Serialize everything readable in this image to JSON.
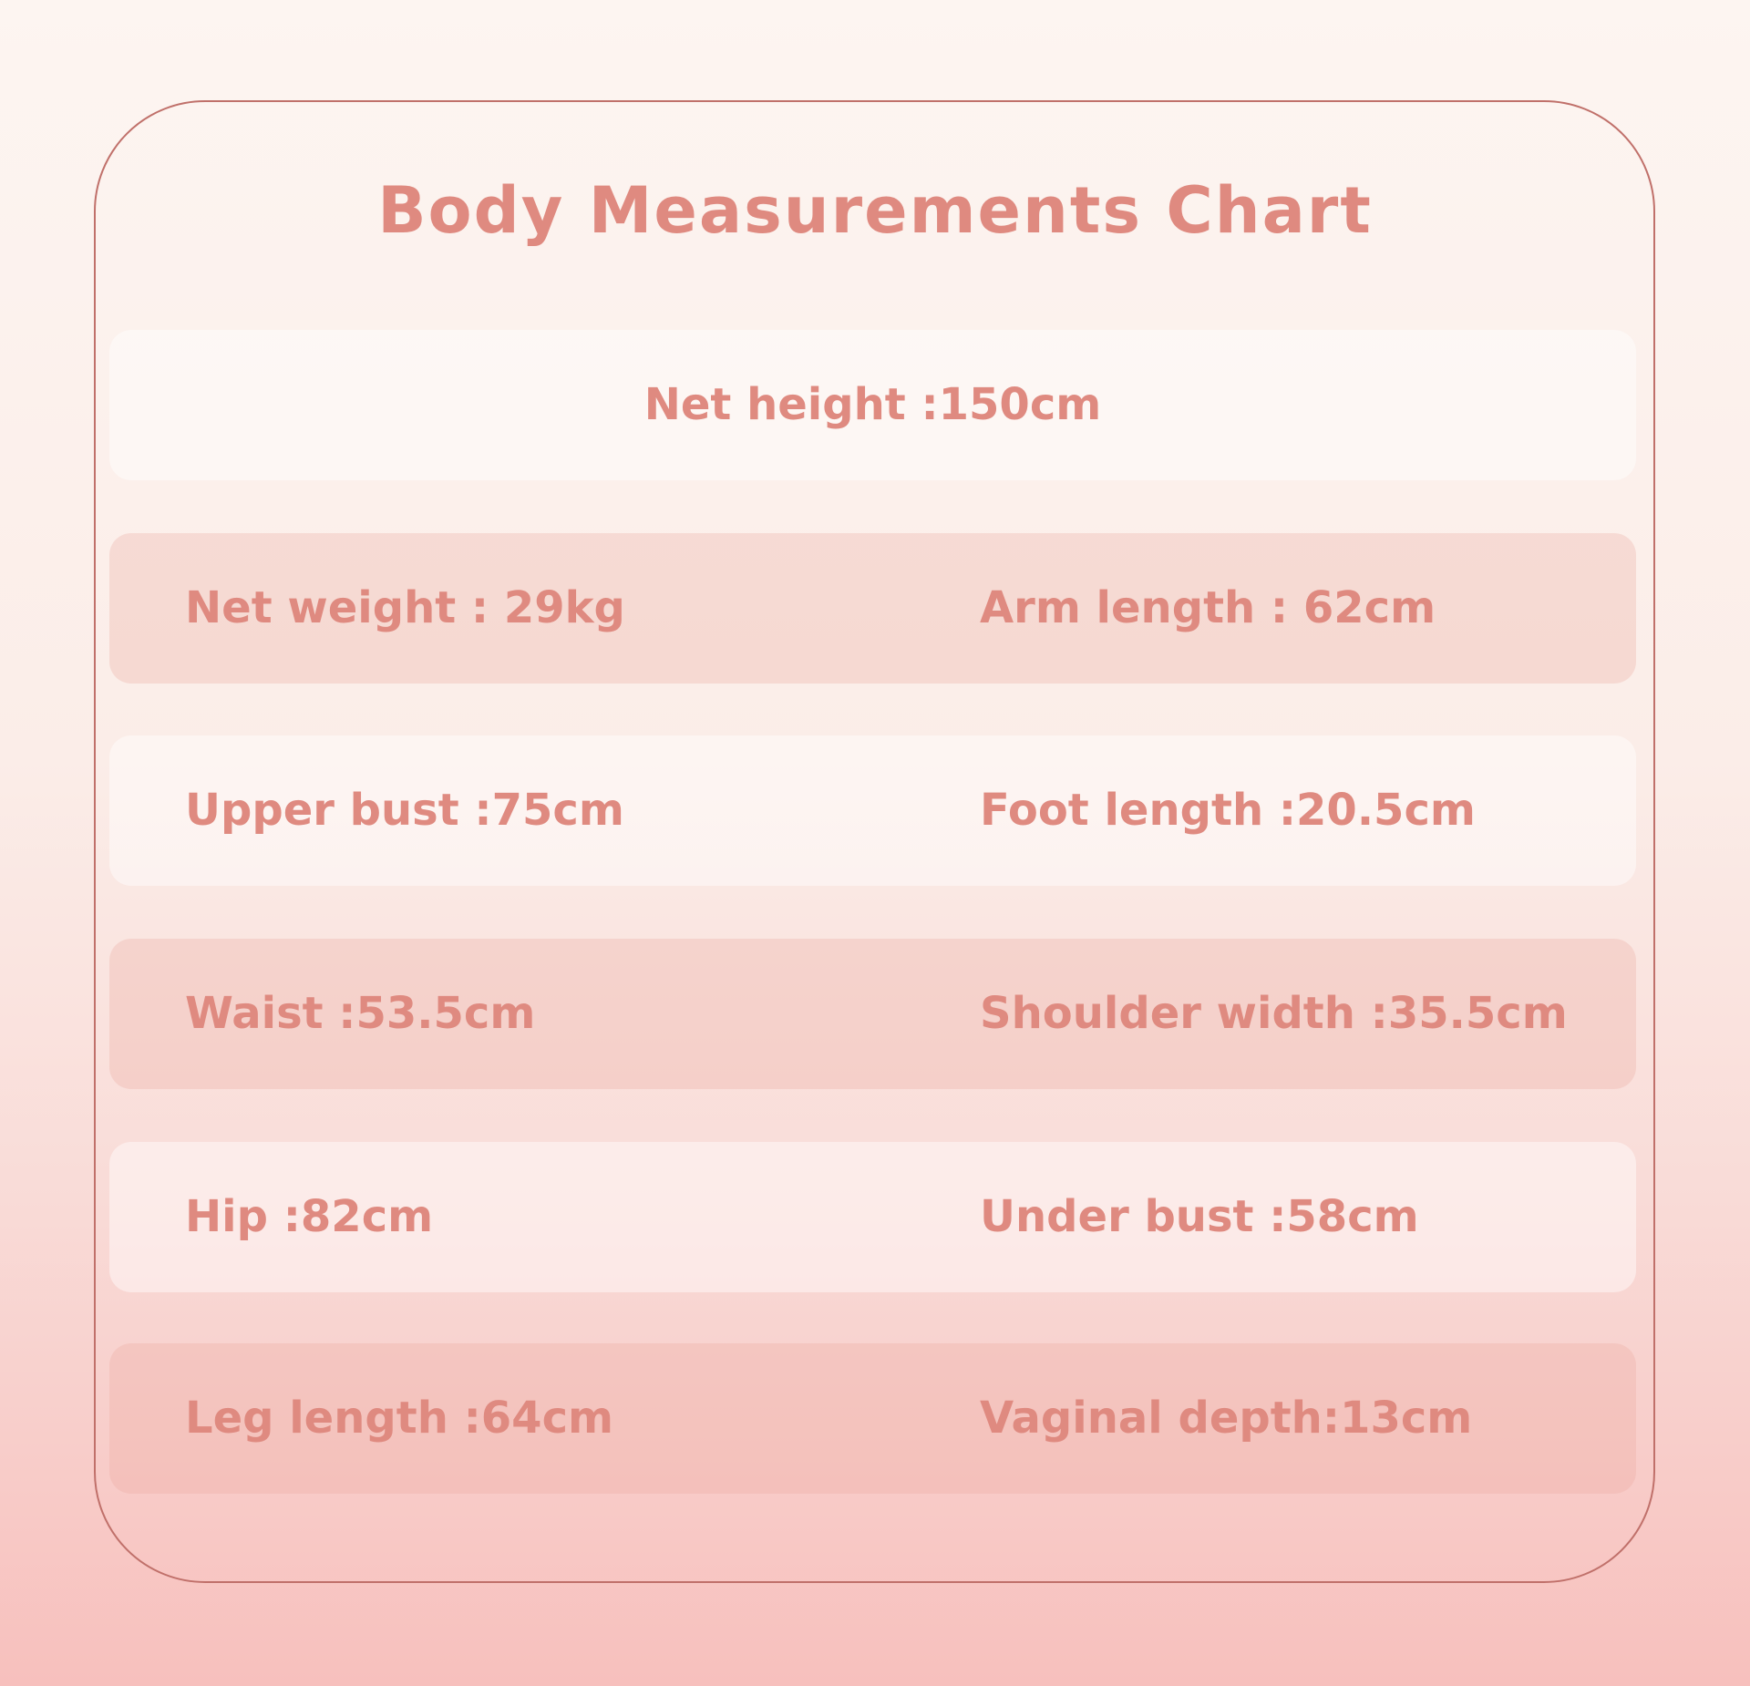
{
  "title": "Body Measurements Chart",
  "colors": {
    "text": "#df8a80",
    "border": "#c0706a"
  },
  "rows": [
    {
      "center": "Net height :150cm"
    },
    {
      "left": "Net weight : 29kg",
      "right": "Arm length : 62cm"
    },
    {
      "left": "Upper bust :75cm",
      "right": "Foot length :20.5cm"
    },
    {
      "left": "Waist :53.5cm",
      "right": "Shoulder width :35.5cm"
    },
    {
      "left": "Hip :82cm",
      "right": "Under bust :58cm"
    },
    {
      "left": "Leg length :64cm",
      "right": "Vaginal depth:13cm"
    }
  ]
}
